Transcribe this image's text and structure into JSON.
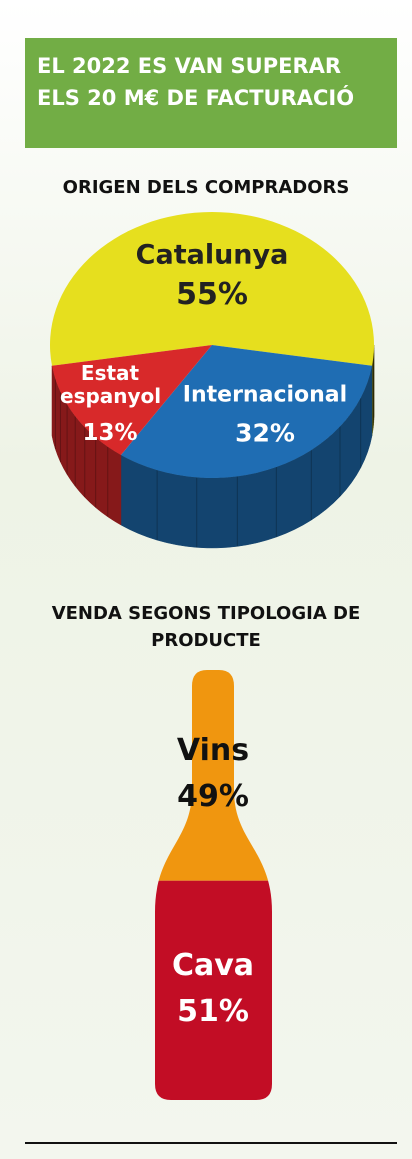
{
  "title": "EL 2022 ES VAN SUPERAR ELS 20 M€ DE FACTURACIÓ",
  "chart_data": [
    {
      "type": "pie",
      "title": "ORIGEN DELS COMPRADORS",
      "categories": [
        "Catalunya",
        "Internacional",
        "Estat espanyol"
      ],
      "values": [
        55,
        32,
        13
      ],
      "value_labels": [
        "55%",
        "32%",
        "13%"
      ],
      "colors": [
        "#e6df1e",
        "#1f6db3",
        "#d8292a"
      ]
    },
    {
      "type": "bottle",
      "title": "VENDA SEGONS TIPOLOGIA DE PRODUCTE",
      "categories": [
        "Vins",
        "Cava"
      ],
      "values": [
        49,
        51
      ],
      "value_labels": [
        "49%",
        "51%"
      ],
      "colors": [
        "#f0960f",
        "#c20d25"
      ]
    }
  ]
}
